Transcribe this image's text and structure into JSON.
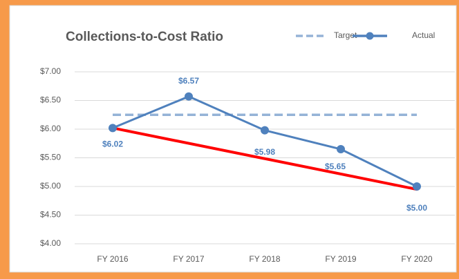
{
  "chart_data": {
    "type": "line",
    "title": "Collections-to-Cost Ratio",
    "categories": [
      "FY 2016",
      "FY 2017",
      "FY 2018",
      "FY 2019",
      "FY 2020"
    ],
    "series": [
      {
        "name": "Target",
        "color": "#95b3d7",
        "dashed": true,
        "values": [
          6.25,
          6.25,
          6.25,
          6.25,
          6.25
        ]
      },
      {
        "name": "Actual",
        "color": "#4f81bd",
        "markers": true,
        "values": [
          6.02,
          6.57,
          5.98,
          5.65,
          5.0
        ],
        "value_labels": [
          "$6.02",
          "$6.57",
          "$5.98",
          "$5.65",
          "$5.00"
        ]
      }
    ],
    "trend": {
      "color": "#ff0000",
      "from": 6.02,
      "to": 4.95
    },
    "ylim": [
      4,
      7
    ],
    "yticks": [
      {
        "value": 4,
        "label": "$4.00"
      },
      {
        "value": 4.5,
        "label": "$4.50"
      },
      {
        "value": 5,
        "label": "$5.00"
      },
      {
        "value": 5.5,
        "label": "$5.50"
      },
      {
        "value": 6,
        "label": "$6.00"
      },
      {
        "value": 6.5,
        "label": "$6.50"
      },
      {
        "value": 7,
        "label": "$7.00"
      }
    ],
    "grid": true,
    "legend": "top-right"
  }
}
